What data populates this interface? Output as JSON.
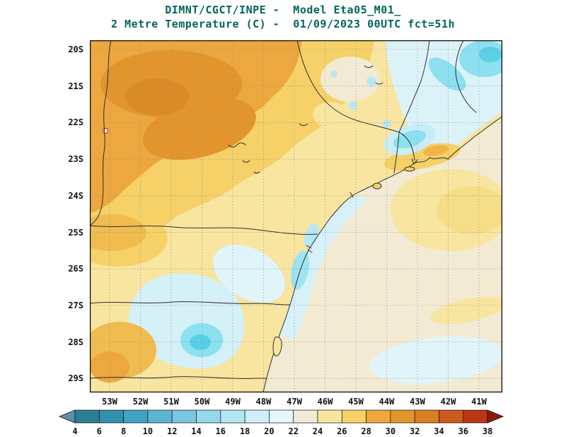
{
  "title": {
    "line1": "DIMNT/CGCT/INPE -  Model Eta05_M01_",
    "line2": "2 Metre Temperature (C) -  01/09/2023 00UTC fct=51h"
  },
  "axes": {
    "y_ticks": [
      "20S",
      "21S",
      "22S",
      "23S",
      "24S",
      "25S",
      "26S",
      "27S",
      "28S",
      "29S"
    ],
    "x_ticks": [
      "53W",
      "52W",
      "51W",
      "50W",
      "49W",
      "48W",
      "47W",
      "46W",
      "45W",
      "44W",
      "43W",
      "42W",
      "41W"
    ]
  },
  "colorbar": {
    "tick_labels": [
      "4",
      "6",
      "8",
      "10",
      "12",
      "14",
      "16",
      "18",
      "20",
      "22",
      "24",
      "26",
      "28",
      "30",
      "32",
      "34",
      "36",
      "38"
    ],
    "segment_colors": [
      "#2c7e93",
      "#338fae",
      "#42a2c4",
      "#5cb4d4",
      "#79c7e2",
      "#96d8ec",
      "#b3e6f3",
      "#cfeef8",
      "#e7f6fa",
      "#f2ead2",
      "#f8e5a0",
      "#f5d168",
      "#eca73f",
      "#e2952d",
      "#d97f24",
      "#cc5a1e",
      "#bc3517"
    ],
    "arrow_left_color": "#5e8fb0",
    "arrow_right_color": "#8e1a0e"
  },
  "chart_data": {
    "type": "heatmap",
    "title": "DIMNT/CGCT/INPE - Model Eta05_M01_",
    "subtitle": "2 Metre Temperature (C) - 01/09/2023 00UTC fct=51h",
    "center": "DIMNT/CGCT/INPE",
    "model": "Eta05_M01_",
    "variable": "2 Metre Temperature",
    "units": "C",
    "run": "01/09/2023 00UTC",
    "forecast": "fct=51h",
    "lat_ticks": [
      "20S",
      "21S",
      "22S",
      "23S",
      "24S",
      "25S",
      "26S",
      "27S",
      "28S",
      "29S"
    ],
    "lon_ticks": [
      "53W",
      "52W",
      "51W",
      "50W",
      "49W",
      "48W",
      "47W",
      "46W",
      "45W",
      "44W",
      "43W",
      "42W",
      "41W"
    ],
    "scale_levels_c": [
      4,
      6,
      8,
      10,
      12,
      14,
      16,
      18,
      20,
      22,
      24,
      26,
      28,
      30,
      32,
      34,
      36,
      38
    ],
    "grid": "dotted lat-lon grid every 1 degree",
    "legend_position": "bottom horizontal colorbar with arrow ends",
    "regions": [
      {
        "area": "northwest interior (western Sao Paulo, ~53-49W 20-23S)",
        "approx_temp_c": "28-32"
      },
      {
        "area": "central Sao Paulo plateau (~49-47W 21-24S)",
        "approx_temp_c": "26-28"
      },
      {
        "area": "eastern Sao Paulo / southern Minas (~47-45W 20-23S)",
        "approx_temp_c": "22-26 with cool pockets 18-20"
      },
      {
        "area": "Mantiqueira / Caparao highlands (top right, ~45-41W 20-23S)",
        "approx_temp_c": "14-20 (cyan cold pockets)"
      },
      {
        "area": "coastal strip near Rio de Janeiro (~44-42W 22-23S)",
        "approx_temp_c": "26-28"
      },
      {
        "area": "offshore Atlantic warm band (~44-41W 23-25S)",
        "approx_temp_c": "24-26"
      },
      {
        "area": "open ocean (southeast half of domain)",
        "approx_temp_c": "22-24"
      },
      {
        "area": "nearshore ocean south of Santos (~48-47W 24-27S)",
        "approx_temp_c": "18-22"
      },
      {
        "area": "southern plateau (Parana / Santa Catarina interior, ~51-49W 26-28S)",
        "approx_temp_c": "18-20"
      },
      {
        "area": "cold core near 28S 50W",
        "approx_temp_c": "14-16"
      },
      {
        "area": "far southwest land (~53-51W 27-29S)",
        "approx_temp_c": "26-30"
      }
    ]
  }
}
